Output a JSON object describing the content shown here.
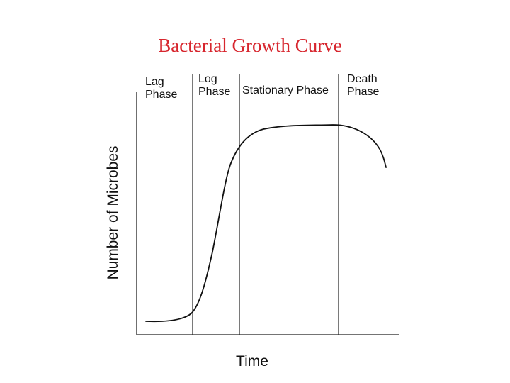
{
  "title": "Bacterial Growth Curve",
  "title_color": "#d7262e",
  "y_axis_label": "Number of Microbes",
  "x_axis_label": "Time",
  "phases": [
    {
      "line1": "Lag",
      "line2": "Phase"
    },
    {
      "line1": "Log",
      "line2": "Phase"
    },
    {
      "line1": "Stationary Phase",
      "line2": ""
    },
    {
      "line1": "Death",
      "line2": "Phase"
    }
  ]
}
